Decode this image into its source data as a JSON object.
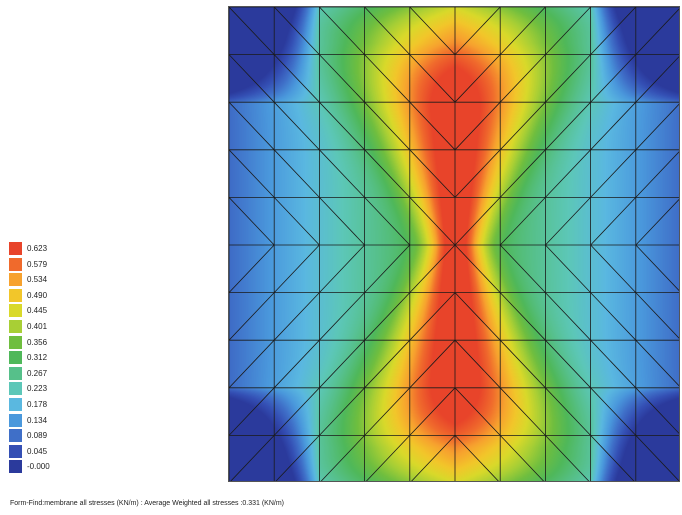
{
  "legend": {
    "labels": [
      "0.623",
      "0.579",
      "0.534",
      "0.490",
      "0.445",
      "0.401",
      "0.356",
      "0.312",
      "0.267",
      "0.223",
      "0.178",
      "0.134",
      "0.089",
      "0.045",
      "-0.000"
    ],
    "colors": [
      "#e8442a",
      "#f06a2c",
      "#f7a22e",
      "#f2c62a",
      "#d9d92a",
      "#a8cf35",
      "#6fbe3f",
      "#4fb85a",
      "#56c08a",
      "#5cc7b8",
      "#5ab8e0",
      "#4a98dc",
      "#3f6fc8",
      "#344fb4",
      "#2b3a9c"
    ]
  },
  "caption": "Form-Find:membrane all stresses (KN/m) : Average Weighted all stresses :0.331 (KN/m)",
  "mesh": {
    "cols": 10,
    "rows": 10
  }
}
